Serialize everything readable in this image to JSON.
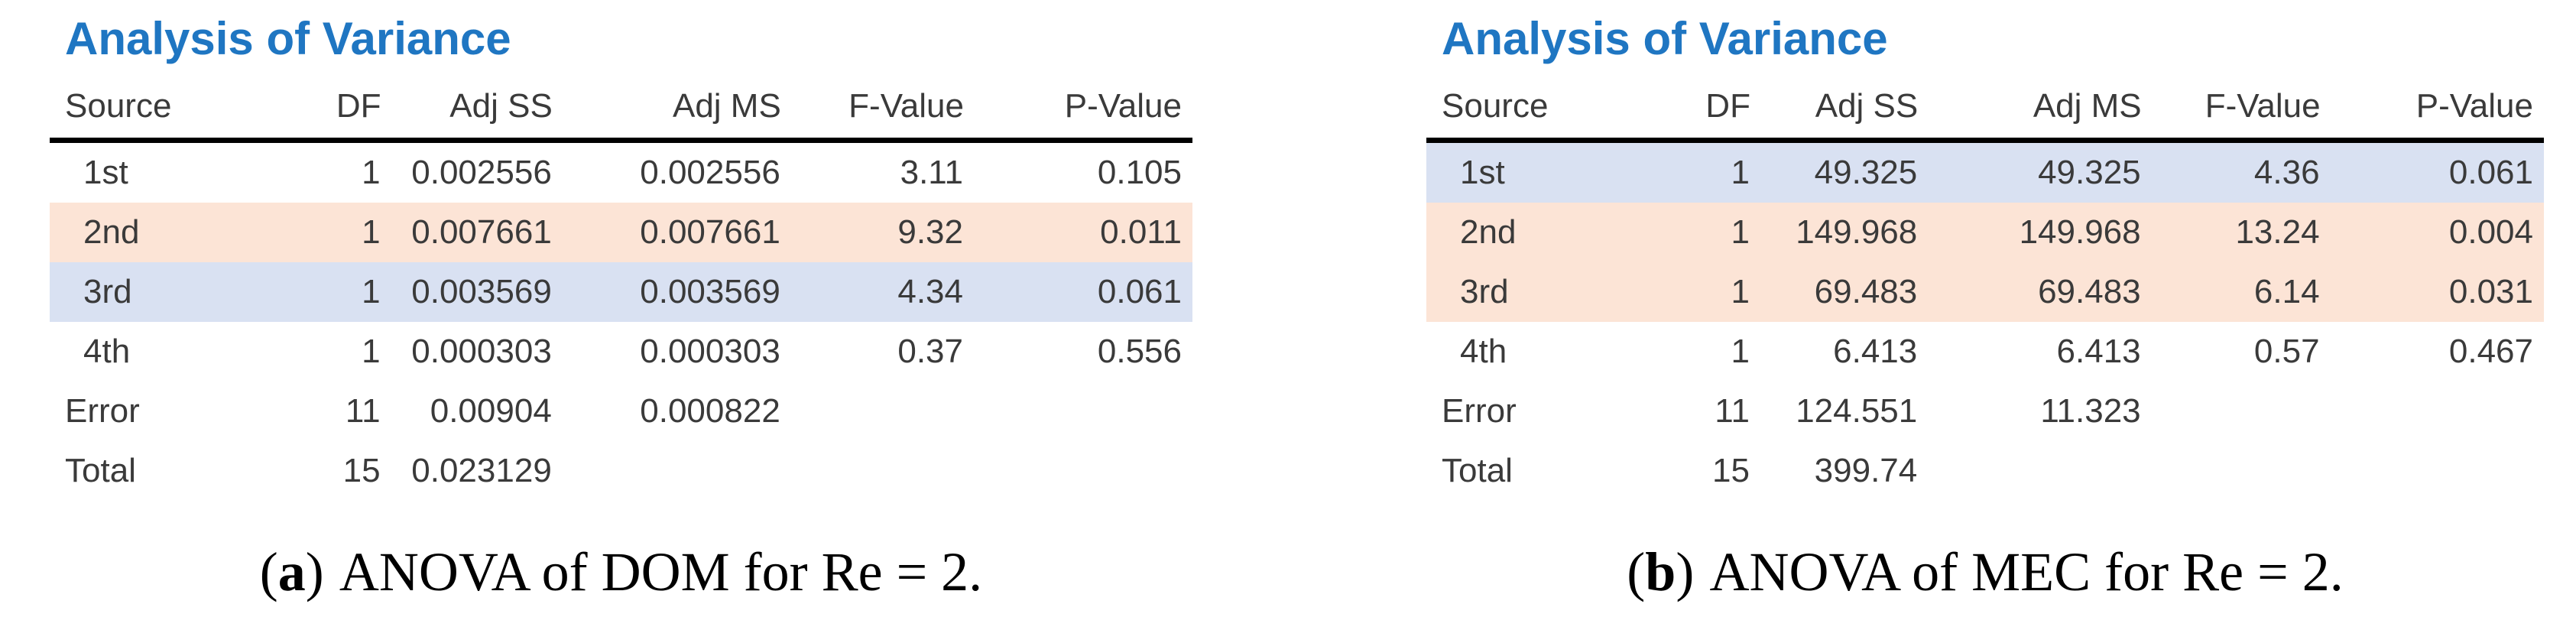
{
  "colors": {
    "title-blue": "#1f76c2",
    "highlight-peach": "#fce4d6",
    "highlight-lavender": "#d9e1f2",
    "text-color": "#3a3a3a",
    "rule-black": "#000000"
  },
  "panels": [
    {
      "title": "Analysis of Variance",
      "columns": [
        "Source",
        "DF",
        "Adj SS",
        "Adj MS",
        "F-Value",
        "P-Value"
      ],
      "rows": [
        {
          "cells": [
            "1st",
            "1",
            "0.002556",
            "0.002556",
            "3.11",
            "0.105"
          ],
          "highlight": "none",
          "indent": true
        },
        {
          "cells": [
            "2nd",
            "1",
            "0.007661",
            "0.007661",
            "9.32",
            "0.011"
          ],
          "highlight": "peach",
          "indent": true
        },
        {
          "cells": [
            "3rd",
            "1",
            "0.003569",
            "0.003569",
            "4.34",
            "0.061"
          ],
          "highlight": "lavender",
          "indent": true
        },
        {
          "cells": [
            "4th",
            "1",
            "0.000303",
            "0.000303",
            "0.37",
            "0.556"
          ],
          "highlight": "none",
          "indent": true
        },
        {
          "cells": [
            "Error",
            "11",
            "0.00904",
            "0.000822",
            "",
            ""
          ],
          "highlight": "none",
          "indent": false
        },
        {
          "cells": [
            "Total",
            "15",
            "0.023129",
            "",
            "",
            ""
          ],
          "highlight": "none",
          "indent": false
        }
      ],
      "caption": {
        "label": "a",
        "text": "ANOVA of DOM for Re = 2."
      }
    },
    {
      "title": "Analysis of Variance",
      "columns": [
        "Source",
        "DF",
        "Adj SS",
        "Adj MS",
        "F-Value",
        "P-Value"
      ],
      "rows": [
        {
          "cells": [
            "1st",
            "1",
            "49.325",
            "49.325",
            "4.36",
            "0.061"
          ],
          "highlight": "lavender",
          "indent": true
        },
        {
          "cells": [
            "2nd",
            "1",
            "149.968",
            "149.968",
            "13.24",
            "0.004"
          ],
          "highlight": "peach",
          "indent": true
        },
        {
          "cells": [
            "3rd",
            "1",
            "69.483",
            "69.483",
            "6.14",
            "0.031"
          ],
          "highlight": "peach",
          "indent": true
        },
        {
          "cells": [
            "4th",
            "1",
            "6.413",
            "6.413",
            "0.57",
            "0.467"
          ],
          "highlight": "none",
          "indent": true
        },
        {
          "cells": [
            "Error",
            "11",
            "124.551",
            "11.323",
            "",
            ""
          ],
          "highlight": "none",
          "indent": false
        },
        {
          "cells": [
            "Total",
            "15",
            "399.74",
            "",
            "",
            ""
          ],
          "highlight": "none",
          "indent": false
        }
      ],
      "caption": {
        "label": "b",
        "text": "ANOVA of MEC for Re = 2."
      }
    }
  ]
}
